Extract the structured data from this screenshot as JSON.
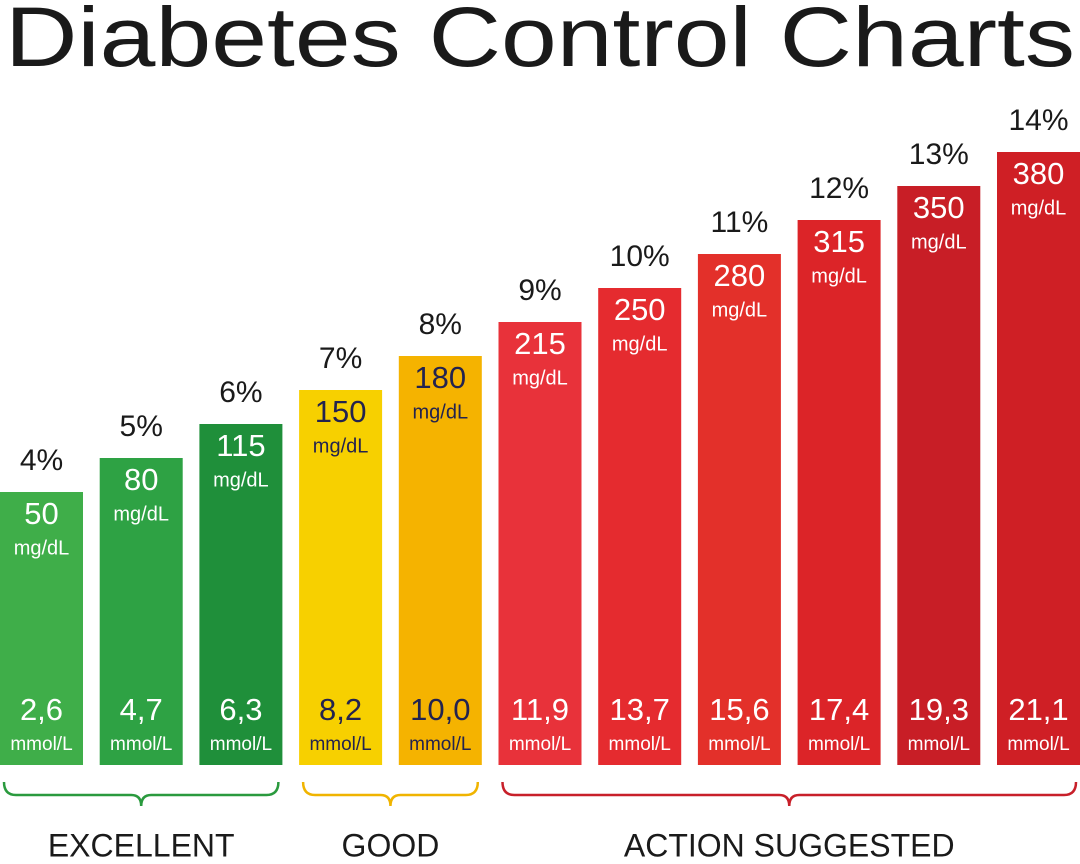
{
  "chart_data": {
    "type": "bar",
    "title": "Diabetes Control Charts",
    "mg_unit": "mg/dL",
    "mmol_unit": "mmol/L",
    "series": [
      {
        "name": "EXCELLENT",
        "color": "#2a9a3e",
        "text_color": "#ffffff",
        "colors": [
          "#3fae49",
          "#2ea244",
          "#1f8f3a"
        ],
        "values": [
          4,
          5,
          6
        ],
        "value_labels": [
          "4%",
          "5%",
          "6%"
        ],
        "mg_dl": [
          50,
          80,
          115
        ],
        "mmol": [
          2.6,
          4.7,
          6.3
        ],
        "mmol_labels": [
          "2,6",
          "4,7",
          "6,3"
        ]
      },
      {
        "name": "GOOD",
        "color": "#f0b400",
        "text_color": "#23234f",
        "colors": [
          "#f7d000",
          "#f5b300"
        ],
        "values": [
          7,
          8
        ],
        "value_labels": [
          "7%",
          "8%"
        ],
        "mg_dl": [
          150,
          180
        ],
        "mmol": [
          8.2,
          10.0
        ],
        "mmol_labels": [
          "8,2",
          "10,0"
        ]
      },
      {
        "name": "ACTION SUGGESTED",
        "color": "#c8202a",
        "text_color": "#ffffff",
        "colors": [
          "#e8323a",
          "#e52b2f",
          "#e3302a",
          "#dc2428",
          "#c81e26",
          "#cf1f25"
        ],
        "values": [
          9,
          10,
          11,
          12,
          13,
          14
        ],
        "value_labels": [
          "9%",
          "10%",
          "11%",
          "12%",
          "13%",
          "14%"
        ],
        "mg_dl": [
          215,
          250,
          280,
          315,
          350,
          380
        ],
        "mmol": [
          11.9,
          13.7,
          15.6,
          17.4,
          19.3,
          21.1
        ],
        "mmol_labels": [
          "11,9",
          "13,7",
          "15,6",
          "17,4",
          "19,3",
          "21,1"
        ]
      }
    ]
  }
}
